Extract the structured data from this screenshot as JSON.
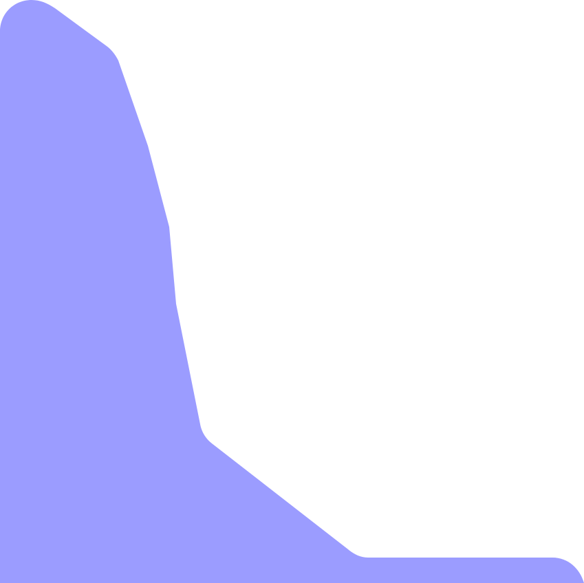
{
  "shape": {
    "fill_color": "#9b9cff",
    "background_color": "#ffffff"
  }
}
